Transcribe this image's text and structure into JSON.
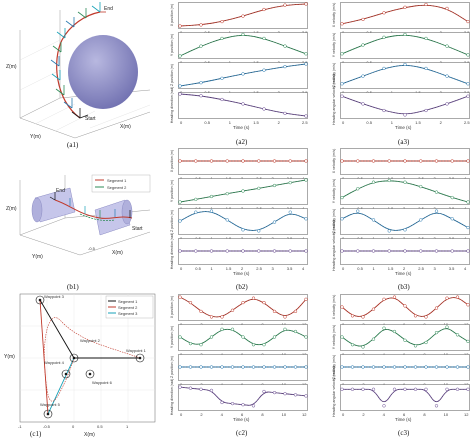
{
  "captions": {
    "a1": "(a1)",
    "a2": "(a2)",
    "a3": "(a3)",
    "b1": "(b1)",
    "b2": "(b2)",
    "b3": "(b3)",
    "c1": "(c1)",
    "c2": "(c2)",
    "c3": "(c3)"
  },
  "panel_a1": {
    "end_label": "End",
    "start_label": "Start",
    "z_axis": "Z(m)",
    "y_axis": "Y(m)",
    "x_axis": "X(m)"
  },
  "panel_b1": {
    "legend": [
      "Segment 1",
      "Segment 2"
    ],
    "end_label": "End",
    "start_label": "Start",
    "z_axis": "Z(m)",
    "y_axis": "Y(m)",
    "x_axis": "X(m)",
    "tick_neg05": "-0.5"
  },
  "panel_c1": {
    "legend": [
      "Segment 1",
      "Segment 2",
      "Segment 3"
    ],
    "waypoints": [
      "Waypoint 1",
      "Waypoint 2",
      "Waypoint 3",
      "Waypoint 4",
      "Waypoint 5",
      "Waypoint 6"
    ],
    "y_axis": "Y(m)",
    "x_axis": "X(m)",
    "xticks": [
      "-1",
      "-0.5",
      "0",
      "0.5",
      "1"
    ]
  },
  "axis_labels": {
    "x_pos": "X position (m)",
    "y_pos": "Y position (m)",
    "z_pos": "Z position (m)",
    "heading": "Heading direction (rad)",
    "x_vel": "X velocity (m/s)",
    "y_vel": "Y velocity (m/s)",
    "z_vel": "Z velocity (m/s)",
    "heading_vel": "Heading angular velocity (rad/s)",
    "time": "Time (s)"
  },
  "colors": {
    "red": "#c0392b",
    "green": "#2e8b57",
    "blue": "#2a7ab0",
    "purple": "#6a4c93",
    "sphere": "#8f8fc9",
    "cylinder": "#b9b9e6",
    "black": "#111111"
  },
  "chart_data": [
    {
      "id": "a2-x",
      "type": "line",
      "series": [
        {
          "values": [
            0,
            0.05,
            0.2,
            0.45,
            0.75,
            0.95,
            1.0
          ]
        }
      ],
      "xticks": [
        "0",
        "0.5",
        "1",
        "1.5",
        "2",
        "2.5"
      ]
    },
    {
      "id": "a2-y",
      "type": "line",
      "series": [
        {
          "values": [
            0,
            0.45,
            0.8,
            0.98,
            0.8,
            0.45,
            0.1
          ]
        }
      ],
      "xticks": [
        "0",
        "0.5",
        "1",
        "1.5",
        "2",
        "2.5"
      ]
    },
    {
      "id": "a2-z",
      "type": "line",
      "series": [
        {
          "values": [
            0,
            0.15,
            0.35,
            0.55,
            0.72,
            0.88,
            1.0
          ]
        }
      ],
      "xticks": [
        "0",
        "0.5",
        "1",
        "1.5",
        "2",
        "2.5"
      ]
    },
    {
      "id": "a2-h",
      "type": "line",
      "series": [
        {
          "values": [
            1.0,
            0.92,
            0.75,
            0.55,
            0.32,
            0.12,
            0
          ]
        }
      ],
      "xticks": [
        "0",
        "0.5",
        "1",
        "1.5",
        "2",
        "2.5"
      ]
    },
    {
      "id": "a3-x",
      "type": "line",
      "series": [
        {
          "values": [
            0.1,
            0.3,
            0.6,
            0.85,
            0.98,
            0.8,
            0.2
          ]
        }
      ],
      "xticks": [
        "0",
        "0.5",
        "1",
        "1.5",
        "2",
        "2.5"
      ]
    },
    {
      "id": "a3-y",
      "type": "line",
      "series": [
        {
          "values": [
            0.1,
            0.5,
            0.85,
            0.98,
            0.8,
            0.45,
            0.05
          ]
        }
      ],
      "xticks": [
        "0",
        "0.5",
        "1",
        "1.5",
        "2",
        "2.5"
      ]
    },
    {
      "id": "a3-z",
      "type": "line",
      "series": [
        {
          "values": [
            0.1,
            0.45,
            0.8,
            0.98,
            0.8,
            0.45,
            0.1
          ]
        }
      ],
      "xticks": [
        "0",
        "0.5",
        "1",
        "1.5",
        "2",
        "2.5"
      ]
    },
    {
      "id": "a3-h",
      "type": "line",
      "series": [
        {
          "values": [
            0.9,
            0.55,
            0.25,
            0.05,
            0.25,
            0.55,
            0.9
          ]
        }
      ],
      "xticks": [
        "0",
        "0.5",
        "1",
        "1.5",
        "2",
        "2.5"
      ]
    },
    {
      "id": "b2-x",
      "type": "line",
      "series": [
        {
          "values": [
            0.5,
            0.5,
            0.5,
            0.5,
            0.5,
            0.5,
            0.5,
            0.5,
            0.5
          ]
        }
      ],
      "xticks": [
        "0",
        "0.5",
        "1",
        "1.5",
        "2",
        "2.5",
        "3",
        "3.5",
        "4"
      ]
    },
    {
      "id": "b2-y",
      "type": "line",
      "series": [
        {
          "values": [
            0,
            0.12,
            0.25,
            0.38,
            0.5,
            0.62,
            0.75,
            0.88,
            1.0
          ]
        }
      ],
      "xticks": [
        "0",
        "0.5",
        "1",
        "1.5",
        "2",
        "2.5",
        "3",
        "3.5",
        "4"
      ]
    },
    {
      "id": "b2-z",
      "type": "line",
      "series": [
        {
          "values": [
            0.5,
            0.9,
            0.95,
            0.55,
            0.1,
            0.05,
            0.45,
            0.9,
            0.6
          ]
        }
      ],
      "xticks": [
        "0",
        "0.5",
        "1",
        "1.5",
        "2",
        "2.5",
        "3",
        "3.5",
        "4"
      ]
    },
    {
      "id": "b2-h",
      "type": "line",
      "series": [
        {
          "values": [
            0.5,
            0.5,
            0.5,
            0.5,
            0.5,
            0.5,
            0.5,
            0.5,
            0.5
          ]
        }
      ],
      "xticks": [
        "0",
        "0.5",
        "1",
        "1.5",
        "2",
        "2.5",
        "3",
        "3.5",
        "4"
      ]
    },
    {
      "id": "b3-x",
      "type": "line",
      "series": [
        {
          "values": [
            0.5,
            0.5,
            0.5,
            0.5,
            0.5,
            0.5,
            0.5,
            0.5,
            0.5
          ]
        }
      ],
      "xticks": [
        "0",
        "0.5",
        "1",
        "1.5",
        "2",
        "2.5",
        "3",
        "3.5",
        "4"
      ]
    },
    {
      "id": "b3-y",
      "type": "line",
      "series": [
        {
          "values": [
            0.2,
            0.6,
            0.9,
            0.98,
            0.9,
            0.7,
            0.45,
            0.2,
            0.0
          ]
        }
      ],
      "xticks": [
        "0",
        "0.5",
        "1",
        "1.5",
        "2",
        "2.5",
        "3",
        "3.5",
        "4"
      ]
    },
    {
      "id": "b3-z",
      "type": "line",
      "series": [
        {
          "values": [
            0.6,
            0.95,
            0.55,
            0.05,
            0.1,
            0.55,
            0.95,
            0.6,
            0.2
          ]
        }
      ],
      "xticks": [
        "0",
        "0.5",
        "1",
        "1.5",
        "2",
        "2.5",
        "3",
        "3.5",
        "4"
      ]
    },
    {
      "id": "b3-h",
      "type": "line",
      "series": [
        {
          "values": [
            0.5,
            0.5,
            0.5,
            0.5,
            0.5,
            0.5,
            0.5,
            0.5,
            0.5
          ]
        }
      ],
      "xticks": [
        "0",
        "0.5",
        "1",
        "1.5",
        "2",
        "2.5",
        "3",
        "3.5",
        "4"
      ]
    },
    {
      "id": "c2-x",
      "type": "line",
      "series": [
        {
          "values": [
            0.95,
            0.7,
            0.3,
            0.05,
            0.05,
            0.35,
            0.7,
            0.9,
            0.7,
            0.3,
            0.05,
            0.3,
            0.85
          ]
        }
      ],
      "xticks": [
        "0",
        "2",
        "4",
        "6",
        "8",
        "10",
        "12"
      ]
    },
    {
      "id": "c2-y",
      "type": "line",
      "series": [
        {
          "values": [
            0.5,
            0.2,
            0.15,
            0.5,
            0.85,
            0.85,
            0.5,
            0.15,
            0.15,
            0.5,
            0.85,
            0.75,
            0.5
          ]
        }
      ],
      "xticks": [
        "0",
        "2",
        "4",
        "6",
        "8",
        "10",
        "12"
      ]
    },
    {
      "id": "c2-z",
      "type": "line",
      "series": [
        {
          "values": [
            0.5,
            0.5,
            0.5,
            0.5,
            0.5,
            0.5,
            0.5,
            0.5,
            0.5,
            0.5,
            0.5,
            0.5,
            0.5
          ]
        }
      ],
      "xticks": [
        "0",
        "2",
        "4",
        "6",
        "8",
        "10",
        "12"
      ]
    },
    {
      "id": "c2-h",
      "type": "line",
      "series": [
        {
          "values": [
            0.95,
            0.9,
            0.85,
            0.8,
            0.25,
            0.2,
            0.15,
            0.1,
            0.75,
            0.7,
            0.65,
            0.6,
            0.55
          ]
        }
      ],
      "xticks": [
        "0",
        "2",
        "4",
        "6",
        "8",
        "10",
        "12"
      ]
    },
    {
      "id": "c3-x",
      "type": "line",
      "series": [
        {
          "values": [
            0.5,
            0.1,
            0.05,
            0.4,
            0.85,
            0.95,
            0.55,
            0.1,
            0.05,
            0.45,
            0.9,
            0.95,
            0.6
          ]
        }
      ],
      "xticks": [
        "0",
        "2",
        "4",
        "6",
        "8",
        "10",
        "12"
      ]
    },
    {
      "id": "c3-y",
      "type": "line",
      "series": [
        {
          "values": [
            0.5,
            0.15,
            0.05,
            0.4,
            0.9,
            0.75,
            0.35,
            0.1,
            0.25,
            0.7,
            0.95,
            0.6,
            0.3
          ]
        }
      ],
      "xticks": [
        "0",
        "2",
        "4",
        "6",
        "8",
        "10",
        "12"
      ]
    },
    {
      "id": "c3-z",
      "type": "line",
      "series": [
        {
          "values": [
            0.5,
            0.5,
            0.5,
            0.5,
            0.5,
            0.5,
            0.5,
            0.5,
            0.5,
            0.5,
            0.5,
            0.5,
            0.5
          ]
        }
      ],
      "xticks": [
        "0",
        "2",
        "4",
        "6",
        "8",
        "10",
        "12"
      ]
    },
    {
      "id": "c3-h",
      "type": "line",
      "series": [
        {
          "values": [
            0.85,
            0.85,
            0.85,
            0.85,
            0.1,
            0.85,
            0.85,
            0.85,
            0.85,
            0.1,
            0.85,
            0.85,
            0.85
          ]
        }
      ],
      "xticks": [
        "0",
        "2",
        "4",
        "6",
        "8",
        "10",
        "12"
      ]
    }
  ]
}
